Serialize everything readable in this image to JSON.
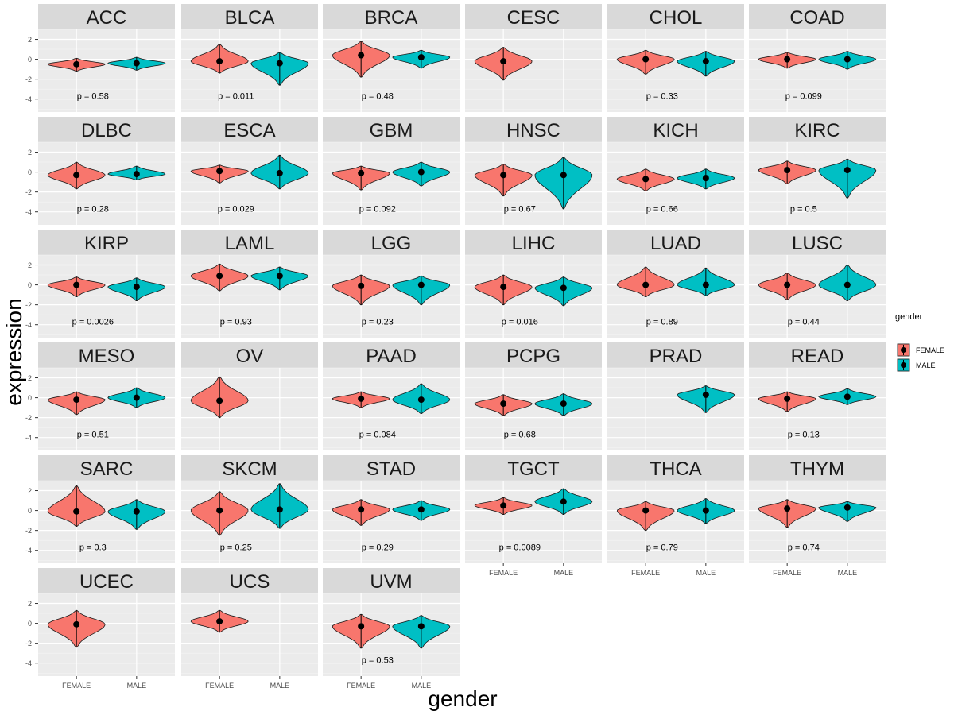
{
  "chart_data": {
    "type": "violin",
    "title": "",
    "xlabel": "gender",
    "ylabel": "expression",
    "categories": [
      "FEMALE",
      "MALE"
    ],
    "ylim": [
      -5.3,
      3.0
    ],
    "y_ticks": [
      -4,
      -2,
      0,
      2
    ],
    "grid": true,
    "legend": {
      "title": "gender",
      "position": "right",
      "entries": [
        {
          "name": "FEMALE",
          "color": "#F8766D"
        },
        {
          "name": "MALE",
          "color": "#00BFC4"
        }
      ]
    },
    "panels": [
      {
        "name": "ACC",
        "p": "p = 0.58",
        "female": {
          "median": -0.5,
          "min": -1.2,
          "max": 0.1
        },
        "male": {
          "median": -0.4,
          "min": -1.1,
          "max": 0.2
        }
      },
      {
        "name": "BLCA",
        "p": "p = 0.011",
        "female": {
          "median": -0.2,
          "min": -1.4,
          "max": 1.5
        },
        "male": {
          "median": -0.4,
          "min": -2.6,
          "max": 0.7
        }
      },
      {
        "name": "BRCA",
        "p": "p = 0.48",
        "female": {
          "median": 0.4,
          "min": -1.8,
          "max": 1.8
        },
        "male": {
          "median": 0.2,
          "min": -0.9,
          "max": 0.9
        }
      },
      {
        "name": "CESC",
        "p": "",
        "female": {
          "median": -0.2,
          "min": -2.1,
          "max": 1.2
        },
        "male": null
      },
      {
        "name": "CHOL",
        "p": "p = 0.33",
        "female": {
          "median": 0.0,
          "min": -1.5,
          "max": 0.9
        },
        "male": {
          "median": -0.2,
          "min": -1.7,
          "max": 0.8
        }
      },
      {
        "name": "COAD",
        "p": "p = 0.099",
        "female": {
          "median": 0.0,
          "min": -0.9,
          "max": 0.7
        },
        "male": {
          "median": 0.0,
          "min": -1.0,
          "max": 0.8
        }
      },
      {
        "name": "DLBC",
        "p": "p = 0.28",
        "female": {
          "median": -0.3,
          "min": -1.7,
          "max": 1.0
        },
        "male": {
          "median": -0.2,
          "min": -0.8,
          "max": 0.6
        }
      },
      {
        "name": "ESCA",
        "p": "p = 0.029",
        "female": {
          "median": 0.1,
          "min": -1.1,
          "max": 0.7
        },
        "male": {
          "median": -0.1,
          "min": -1.7,
          "max": 1.7
        }
      },
      {
        "name": "GBM",
        "p": "p = 0.092",
        "female": {
          "median": -0.1,
          "min": -1.8,
          "max": 0.6
        },
        "male": {
          "median": 0.0,
          "min": -1.4,
          "max": 1.0
        }
      },
      {
        "name": "HNSC",
        "p": "p = 0.67",
        "female": {
          "median": -0.3,
          "min": -2.4,
          "max": 0.8
        },
        "male": {
          "median": -0.3,
          "min": -3.7,
          "max": 1.5
        }
      },
      {
        "name": "KICH",
        "p": "p = 0.66",
        "female": {
          "median": -0.7,
          "min": -1.9,
          "max": 0.3
        },
        "male": {
          "median": -0.6,
          "min": -1.7,
          "max": 0.3
        }
      },
      {
        "name": "KIRC",
        "p": "p = 0.5",
        "female": {
          "median": 0.2,
          "min": -1.2,
          "max": 1.1
        },
        "male": {
          "median": 0.2,
          "min": -2.6,
          "max": 1.3
        }
      },
      {
        "name": "KIRP",
        "p": "p = 0.0026",
        "female": {
          "median": 0.0,
          "min": -1.2,
          "max": 0.8
        },
        "male": {
          "median": -0.2,
          "min": -1.6,
          "max": 0.7
        }
      },
      {
        "name": "LAML",
        "p": "p = 0.93",
        "female": {
          "median": 0.9,
          "min": -0.6,
          "max": 2.1
        },
        "male": {
          "median": 0.9,
          "min": -0.5,
          "max": 1.8
        }
      },
      {
        "name": "LGG",
        "p": "p = 0.23",
        "female": {
          "median": -0.1,
          "min": -2.0,
          "max": 1.0
        },
        "male": {
          "median": 0.0,
          "min": -2.0,
          "max": 0.9
        }
      },
      {
        "name": "LIHC",
        "p": "p = 0.016",
        "female": {
          "median": -0.2,
          "min": -2.0,
          "max": 1.0
        },
        "male": {
          "median": -0.3,
          "min": -2.1,
          "max": 0.8
        }
      },
      {
        "name": "LUAD",
        "p": "p = 0.89",
        "female": {
          "median": 0.0,
          "min": -1.2,
          "max": 1.8
        },
        "male": {
          "median": 0.0,
          "min": -1.1,
          "max": 1.7
        }
      },
      {
        "name": "LUSC",
        "p": "p = 0.44",
        "female": {
          "median": 0.0,
          "min": -1.5,
          "max": 1.2
        },
        "male": {
          "median": 0.0,
          "min": -1.6,
          "max": 2.0
        }
      },
      {
        "name": "MESO",
        "p": "p = 0.51",
        "female": {
          "median": -0.2,
          "min": -1.7,
          "max": 0.6
        },
        "male": {
          "median": 0.0,
          "min": -1.0,
          "max": 1.0
        }
      },
      {
        "name": "OV",
        "p": "",
        "female": {
          "median": -0.3,
          "min": -2.0,
          "max": 2.1
        },
        "male": null
      },
      {
        "name": "PAAD",
        "p": "p = 0.084",
        "female": {
          "median": -0.1,
          "min": -1.0,
          "max": 0.6
        },
        "male": {
          "median": -0.2,
          "min": -1.6,
          "max": 1.4
        }
      },
      {
        "name": "PCPG",
        "p": "p = 0.68",
        "female": {
          "median": -0.6,
          "min": -1.8,
          "max": 0.3
        },
        "male": {
          "median": -0.6,
          "min": -1.8,
          "max": 0.4
        }
      },
      {
        "name": "PRAD",
        "p": "",
        "female": null,
        "male": {
          "median": 0.3,
          "min": -1.5,
          "max": 1.2
        }
      },
      {
        "name": "READ",
        "p": "p = 0.13",
        "female": {
          "median": -0.1,
          "min": -1.4,
          "max": 0.6
        },
        "male": {
          "median": 0.1,
          "min": -0.7,
          "max": 0.9
        }
      },
      {
        "name": "SARC",
        "p": "p = 0.3",
        "female": {
          "median": -0.1,
          "min": -1.6,
          "max": 2.5
        },
        "male": {
          "median": -0.1,
          "min": -1.9,
          "max": 1.1
        }
      },
      {
        "name": "SKCM",
        "p": "p = 0.25",
        "female": {
          "median": 0.0,
          "min": -2.5,
          "max": 1.9
        },
        "male": {
          "median": 0.1,
          "min": -1.8,
          "max": 2.7
        }
      },
      {
        "name": "STAD",
        "p": "p = 0.29",
        "female": {
          "median": 0.1,
          "min": -1.5,
          "max": 1.1
        },
        "male": {
          "median": 0.1,
          "min": -1.0,
          "max": 1.0
        }
      },
      {
        "name": "TGCT",
        "p": "p = 0.0089",
        "female": {
          "median": 0.5,
          "min": -0.4,
          "max": 1.3
        },
        "male": {
          "median": 0.9,
          "min": -0.4,
          "max": 2.2
        }
      },
      {
        "name": "THCA",
        "p": "p = 0.79",
        "female": {
          "median": 0.0,
          "min": -2.0,
          "max": 0.9
        },
        "male": {
          "median": 0.0,
          "min": -1.3,
          "max": 1.2
        }
      },
      {
        "name": "THYM",
        "p": "p = 0.74",
        "female": {
          "median": 0.2,
          "min": -1.7,
          "max": 1.1
        },
        "male": {
          "median": 0.3,
          "min": -1.1,
          "max": 0.9
        }
      },
      {
        "name": "UCEC",
        "p": "",
        "female": {
          "median": -0.1,
          "min": -2.4,
          "max": 1.3
        },
        "male": null
      },
      {
        "name": "UCS",
        "p": "",
        "female": {
          "median": 0.2,
          "min": -0.9,
          "max": 1.3
        },
        "male": null
      },
      {
        "name": "UVM",
        "p": "p = 0.53",
        "female": {
          "median": -0.3,
          "min": -2.5,
          "max": 0.9
        },
        "male": {
          "median": -0.3,
          "min": -2.5,
          "max": 0.8
        }
      }
    ]
  }
}
